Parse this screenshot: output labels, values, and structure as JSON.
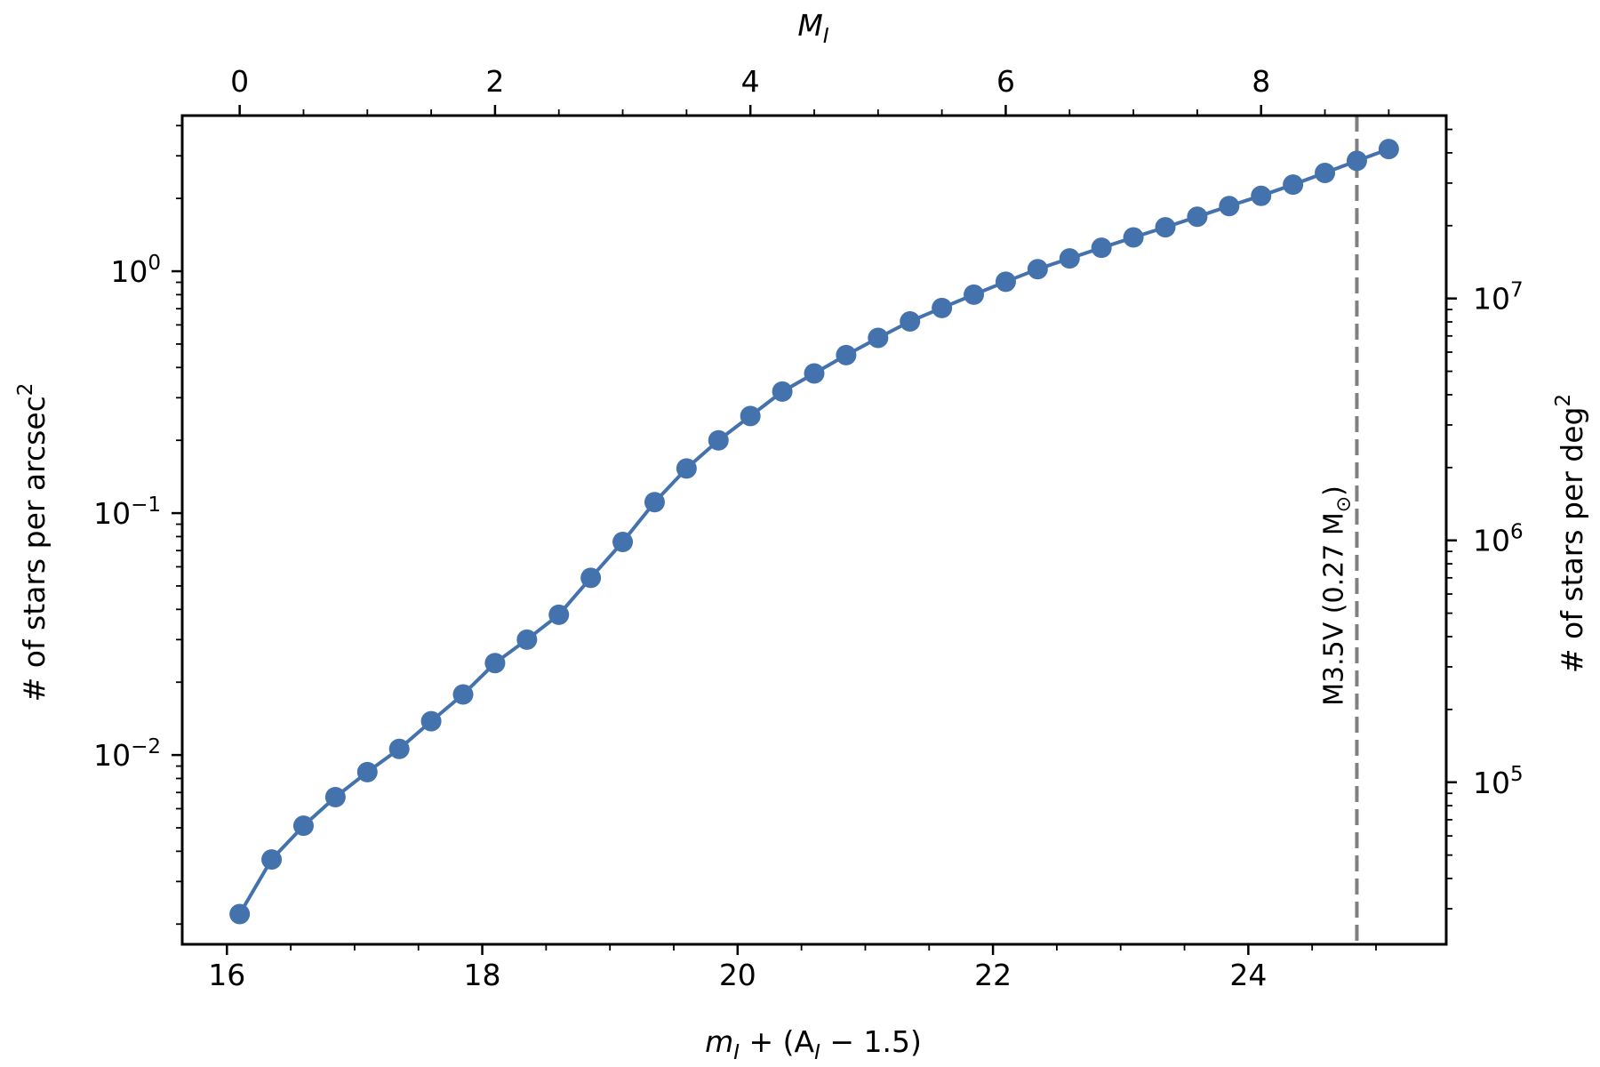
{
  "chart_data": {
    "type": "line",
    "xlabel": {
      "pre": "m",
      "sub": "I",
      "post": " + (A",
      "sub2": "I",
      "tail": " − 1.5)"
    },
    "top_xlabel": {
      "base": "M",
      "sub": "I"
    },
    "ylabel": {
      "text": "# of stars per arcsec",
      "sup": "2"
    },
    "right_ylabel": {
      "text": "# of stars per deg",
      "sup": "2"
    },
    "xlim": [
      15.65,
      25.55
    ],
    "ylim": [
      0.00165,
      4.4
    ],
    "yscale": "log",
    "right_yscale": "log",
    "right_ylim": [
      21384,
      57024000
    ],
    "top_x_offset": 16.1,
    "color": "#4472ad",
    "ref_line_color": "#808080",
    "x_ticks": [
      "16",
      "18",
      "20",
      "22",
      "24"
    ],
    "top_ticks": [
      "0",
      "2",
      "4",
      "6",
      "8"
    ],
    "y_ticks": [
      {
        "base": "10",
        "exp": "0"
      },
      {
        "base": "10",
        "exp": "−1"
      },
      {
        "base": "10",
        "exp": "−2"
      }
    ],
    "right_ticks": [
      {
        "base": "10",
        "exp": "7"
      },
      {
        "base": "10",
        "exp": "6"
      },
      {
        "base": "10",
        "exp": "5"
      }
    ],
    "annotation": {
      "text": "M3.5V (0.27 M",
      "sub": "⊙",
      "close": ")",
      "x": 24.85
    },
    "series": [
      {
        "x": [
          16.1,
          16.35,
          16.6,
          16.85,
          17.1,
          17.35,
          17.6,
          17.85,
          18.1,
          18.35,
          18.6,
          18.85,
          19.1,
          19.35,
          19.6,
          19.85,
          20.1,
          20.35,
          20.6,
          20.85,
          21.1,
          21.35,
          21.6,
          21.85,
          22.1,
          22.35,
          22.6,
          22.85,
          23.1,
          23.35,
          23.6,
          23.85,
          24.1,
          24.35,
          24.6,
          24.85,
          25.1
        ],
        "values": [
          0.0022,
          0.0037,
          0.0051,
          0.0067,
          0.0085,
          0.0106,
          0.0138,
          0.0178,
          0.024,
          0.03,
          0.038,
          0.054,
          0.076,
          0.111,
          0.153,
          0.2,
          0.252,
          0.318,
          0.378,
          0.45,
          0.53,
          0.62,
          0.705,
          0.8,
          0.905,
          1.02,
          1.13,
          1.25,
          1.38,
          1.52,
          1.68,
          1.86,
          2.05,
          2.28,
          2.55,
          2.86,
          3.2
        ]
      }
    ]
  }
}
